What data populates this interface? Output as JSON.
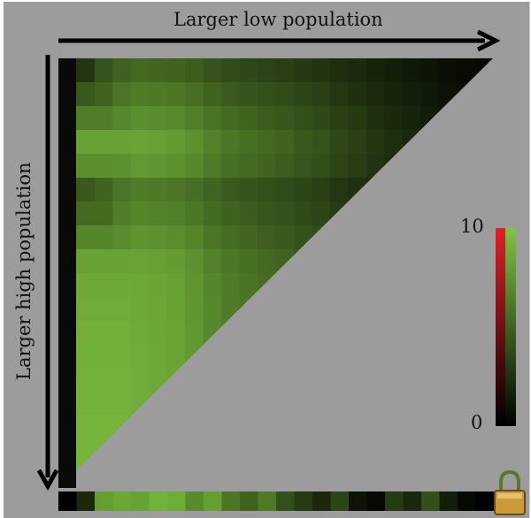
{
  "chart_data": {
    "type": "heatmap",
    "shape": "upper-left triangle",
    "xlabel": "Larger low population",
    "ylabel": "Larger high population",
    "colorbar": {
      "min": 0,
      "max": 10,
      "min_label": "0",
      "max_label": "10"
    },
    "colors": {
      "background": "#9c9c9c",
      "low": "#000000",
      "high_green": "#7fc540",
      "high_red": "#e0202a"
    },
    "column_profile": [
      0.05,
      0.3,
      0.72,
      0.85,
      0.9,
      0.88,
      0.86,
      0.8,
      0.72,
      0.66,
      0.62,
      0.58,
      0.55,
      0.5,
      0.46,
      0.4,
      0.36,
      0.3,
      0.26,
      0.22,
      0.18,
      0.14,
      0.1,
      0.08
    ],
    "row_profile": [
      0.25,
      0.45,
      0.65,
      0.85,
      0.75,
      0.45,
      0.55,
      0.7,
      0.85,
      0.9,
      0.92,
      0.93,
      0.94,
      0.95,
      0.95,
      0.96,
      0.96,
      0.97
    ],
    "bottom_strip": [
      0.0,
      0.2,
      0.8,
      0.85,
      0.82,
      0.9,
      0.88,
      0.7,
      0.8,
      0.6,
      0.5,
      0.62,
      0.4,
      0.3,
      0.2,
      0.35,
      0.1,
      0.05,
      0.3,
      0.2,
      0.4,
      0.15,
      0.05,
      0.0
    ]
  },
  "icons": {
    "lock": "lock-icon"
  }
}
